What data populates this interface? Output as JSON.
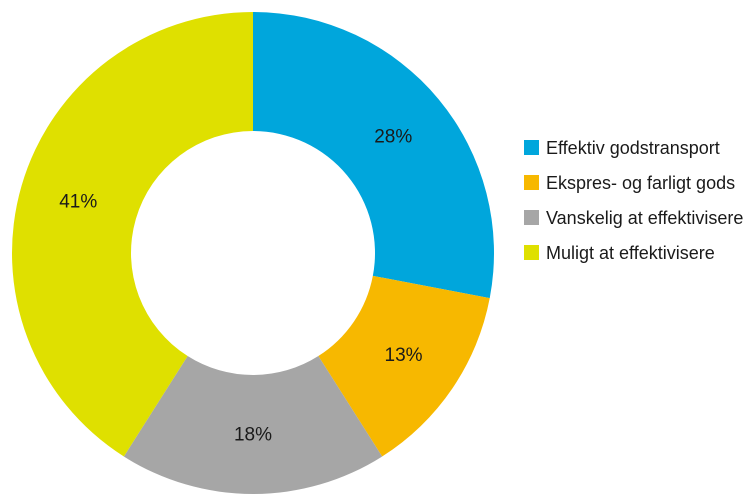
{
  "chart_data": {
    "type": "pie",
    "donut": true,
    "categories": [
      "Effektiv godstransport",
      "Ekspres- og farligt gods",
      "Vanskelig at effektivisere",
      "Muligt at effektivisere"
    ],
    "values": [
      28,
      13,
      18,
      41
    ],
    "data_labels": [
      "28%",
      "13%",
      "18%",
      "41%"
    ],
    "colors": [
      "#00a6dc",
      "#f7b800",
      "#a6a6a6",
      "#dfe000"
    ],
    "start_angle": "12 o'clock",
    "direction": "clockwise",
    "legend_placement": "right"
  }
}
